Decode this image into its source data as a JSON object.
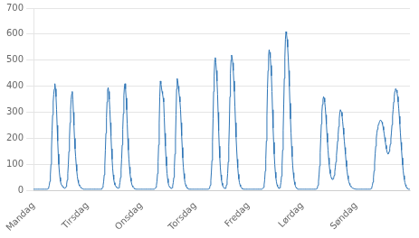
{
  "chart_data": {
    "type": "line",
    "categories": [
      "Mandag",
      null,
      null,
      null,
      null,
      null,
      null,
      null,
      null,
      null,
      null,
      null,
      null,
      null,
      null,
      null,
      null,
      null,
      null,
      null,
      null,
      null,
      null,
      null,
      null,
      null,
      null,
      null,
      null,
      null,
      null,
      null,
      null,
      null,
      null,
      null,
      null,
      null,
      null,
      null,
      null,
      null,
      null,
      null,
      null,
      null,
      null,
      null,
      null,
      null,
      null,
      null,
      null,
      null,
      null,
      null,
      null,
      null,
      null,
      null,
      null,
      null,
      null,
      null,
      null,
      null,
      null,
      null,
      null,
      null,
      null,
      null,
      null,
      null,
      null,
      null,
      null,
      null,
      null,
      null,
      null,
      null,
      null,
      null,
      null,
      null,
      null,
      null,
      null,
      null,
      null,
      null,
      null,
      null,
      null,
      null,
      "Tirsdag",
      null,
      null,
      null,
      null,
      null,
      null,
      null,
      null,
      null,
      null,
      null,
      null,
      null,
      null,
      null,
      null,
      null,
      null,
      null,
      null,
      null,
      null,
      null,
      null,
      null,
      null,
      null,
      null,
      null,
      null,
      null,
      null,
      null,
      null,
      null,
      null,
      null,
      null,
      null,
      null,
      null,
      null,
      null,
      null,
      null,
      null,
      null,
      null,
      null,
      null,
      null,
      null,
      null,
      null,
      null,
      null,
      null,
      null,
      null,
      null,
      null,
      null,
      null,
      null,
      null,
      null,
      null,
      null,
      null,
      null,
      null,
      null,
      null,
      null,
      null,
      null,
      null,
      null,
      null,
      null,
      null,
      null,
      null,
      null,
      null,
      null,
      null,
      null,
      null,
      null,
      null,
      null,
      null,
      null,
      null,
      "Onsdag",
      null,
      null,
      null,
      null,
      null,
      null,
      null,
      null,
      null,
      null,
      null,
      null,
      null,
      null,
      null,
      null,
      null,
      null,
      null,
      null,
      null,
      null,
      null,
      null,
      null,
      null,
      null,
      null,
      null,
      null,
      null,
      null,
      null,
      null,
      null,
      null,
      null,
      null,
      null,
      null,
      null,
      null,
      null,
      null,
      null,
      null,
      null,
      null,
      null,
      null,
      null,
      null,
      null,
      null,
      null,
      null,
      null,
      null,
      null,
      null,
      null,
      null,
      null,
      null,
      null,
      null,
      null,
      null,
      null,
      null,
      null,
      null,
      null,
      null,
      null,
      null,
      null,
      null,
      null,
      null,
      null,
      null,
      null,
      null,
      null,
      null,
      null,
      null,
      null,
      null,
      null,
      null,
      null,
      null,
      null,
      "Torsdag",
      null,
      null,
      null,
      null,
      null,
      null,
      null,
      null,
      null,
      null,
      null,
      null,
      null,
      null,
      null,
      null,
      null,
      null,
      null,
      null,
      null,
      null,
      null,
      null,
      null,
      null,
      null,
      null,
      null,
      null,
      null,
      null,
      null,
      null,
      null,
      null,
      null,
      null,
      null,
      null,
      null,
      null,
      null,
      null,
      null,
      null,
      null,
      null,
      null,
      null,
      null,
      null,
      null,
      null,
      null,
      null,
      null,
      null,
      null,
      null,
      null,
      null,
      null,
      null,
      null,
      null,
      null,
      null,
      null,
      null,
      null,
      null,
      null,
      null,
      null,
      null,
      null,
      null,
      null,
      null,
      null,
      null,
      null,
      null,
      null,
      null,
      null,
      null,
      null,
      null,
      null,
      null,
      null,
      null,
      "Fredag",
      null,
      null,
      null,
      null,
      null,
      null,
      null,
      null,
      null,
      null,
      null,
      null,
      null,
      null,
      null,
      null,
      null,
      null,
      null,
      null,
      null,
      null,
      null,
      null,
      null,
      null,
      null,
      null,
      null,
      null,
      null,
      null,
      null,
      null,
      null,
      null,
      null,
      null,
      null,
      null,
      null,
      null,
      null,
      null,
      null,
      null,
      null,
      null,
      null,
      null,
      null,
      null,
      null,
      null,
      null,
      null,
      null,
      null,
      null,
      null,
      null,
      null,
      null,
      null,
      null,
      null,
      null,
      null,
      null,
      null,
      null,
      null,
      null,
      null,
      null,
      null,
      null,
      null,
      null,
      null,
      null,
      null,
      null,
      null,
      null,
      null,
      null,
      null,
      null,
      null,
      null,
      null,
      null,
      null,
      null,
      "Lørdag",
      null,
      null,
      null,
      null,
      null,
      null,
      null,
      null,
      null,
      null,
      null,
      null,
      null,
      null,
      null,
      null,
      null,
      null,
      null,
      null,
      null,
      null,
      null,
      null,
      null,
      null,
      null,
      null,
      null,
      null,
      null,
      null,
      null,
      null,
      null,
      null,
      null,
      null,
      null,
      null,
      null,
      null,
      null,
      null,
      null,
      null,
      null,
      null,
      null,
      null,
      null,
      null,
      null,
      null,
      null,
      null,
      null,
      null,
      null,
      null,
      null,
      null,
      null,
      null,
      null,
      null,
      null,
      null,
      null,
      null,
      null,
      null,
      null,
      null,
      null,
      null,
      null,
      null,
      null,
      null,
      null,
      null,
      null,
      null,
      null,
      null,
      null,
      null,
      null,
      null,
      null,
      null,
      null,
      null,
      null,
      "Søndag",
      null,
      null,
      null,
      null,
      null,
      null,
      null,
      null,
      null,
      null,
      null,
      null,
      null,
      null,
      null,
      null,
      null,
      null,
      null,
      null,
      null,
      null,
      null,
      null,
      null,
      null,
      null,
      null,
      null,
      null,
      null,
      null,
      null,
      null,
      null,
      null,
      null,
      null,
      null,
      null,
      null,
      null,
      null,
      null,
      null,
      null,
      null,
      null,
      null,
      null,
      null,
      null,
      null,
      null,
      null,
      null,
      null,
      null,
      null,
      null,
      null,
      null,
      null,
      null,
      null,
      null,
      null,
      null,
      null,
      null,
      null,
      null,
      null,
      null,
      null,
      null,
      null,
      null,
      null,
      null,
      null,
      null,
      null,
      null,
      null,
      null,
      null,
      null,
      null,
      null,
      null,
      null,
      null,
      null,
      null,
      null
    ],
    "values": [
      5,
      5,
      5,
      5,
      5,
      5,
      5,
      5,
      5,
      5,
      5,
      5,
      5,
      5,
      5,
      5,
      5,
      5,
      5,
      5,
      5,
      5,
      5,
      5,
      5,
      5,
      8,
      12,
      20,
      35,
      60,
      100,
      160,
      230,
      290,
      340,
      370,
      390,
      410,
      390,
      360,
      310,
      250,
      190,
      140,
      100,
      70,
      50,
      35,
      25,
      20,
      18,
      15,
      12,
      10,
      8,
      8,
      10,
      15,
      25,
      40,
      65,
      100,
      150,
      200,
      260,
      310,
      350,
      370,
      380,
      350,
      300,
      250,
      200,
      160,
      130,
      100,
      75,
      55,
      40,
      30,
      22,
      18,
      15,
      12,
      10,
      8,
      7,
      6,
      5,
      5,
      5,
      5,
      5,
      5,
      5,
      5,
      5,
      5,
      5,
      5,
      5,
      5,
      5,
      5,
      5,
      5,
      5,
      5,
      5,
      5,
      5,
      5,
      5,
      5,
      5,
      5,
      5,
      5,
      5,
      5,
      5,
      8,
      12,
      20,
      35,
      60,
      95,
      155,
      220,
      280,
      340,
      385,
      395,
      380,
      350,
      310,
      260,
      210,
      160,
      120,
      85,
      60,
      42,
      30,
      22,
      18,
      15,
      12,
      10,
      8,
      8,
      10,
      18,
      30,
      50,
      80,
      120,
      175,
      235,
      295,
      365,
      400,
      410,
      390,
      355,
      310,
      255,
      200,
      155,
      120,
      90,
      65,
      48,
      35,
      25,
      18,
      14,
      11,
      9,
      7,
      6,
      5,
      5,
      5,
      5,
      5,
      5,
      5,
      5,
      5,
      5,
      5,
      5,
      5,
      5,
      5,
      5,
      5,
      5,
      5,
      5,
      5,
      5,
      5,
      5,
      5,
      5,
      5,
      5,
      5,
      5,
      5,
      5,
      5,
      5,
      5,
      8,
      12,
      20,
      35,
      65,
      110,
      175,
      260,
      360,
      420,
      410,
      395,
      380,
      370,
      355,
      340,
      280,
      220,
      170,
      130,
      95,
      65,
      45,
      30,
      20,
      15,
      12,
      10,
      8,
      8,
      10,
      18,
      30,
      50,
      90,
      140,
      200,
      290,
      390,
      430,
      420,
      400,
      380,
      360,
      340,
      310,
      260,
      210,
      165,
      125,
      90,
      65,
      45,
      30,
      22,
      16,
      12,
      9,
      7,
      6,
      5,
      5,
      5,
      5,
      5,
      5,
      5,
      5,
      5,
      5,
      5,
      5,
      5,
      5,
      5,
      5,
      5,
      5,
      5,
      5,
      5,
      5,
      5,
      5,
      5,
      5,
      5,
      5,
      5,
      5,
      5,
      5,
      5,
      5,
      5,
      5,
      8,
      12,
      20,
      38,
      70,
      115,
      185,
      275,
      380,
      440,
      500,
      510,
      490,
      460,
      420,
      370,
      300,
      230,
      170,
      125,
      88,
      60,
      40,
      28,
      20,
      14,
      11,
      9,
      8,
      8,
      12,
      22,
      38,
      65,
      110,
      170,
      250,
      360,
      450,
      500,
      520,
      510,
      490,
      460,
      420,
      380,
      320,
      260,
      205,
      160,
      120,
      88,
      62,
      44,
      30,
      22,
      16,
      12,
      9,
      7,
      6,
      5,
      5,
      5,
      5,
      5,
      5,
      5,
      5,
      5,
      5,
      5,
      5,
      5,
      5,
      5,
      5,
      5,
      5,
      5,
      5,
      5,
      5,
      5,
      5,
      5,
      5,
      5,
      5,
      5,
      5,
      5,
      5,
      5,
      5,
      5,
      8,
      12,
      22,
      40,
      75,
      120,
      190,
      285,
      390,
      460,
      520,
      540,
      530,
      510,
      480,
      440,
      380,
      310,
      240,
      185,
      140,
      100,
      70,
      48,
      33,
      22,
      16,
      12,
      9,
      8,
      10,
      18,
      30,
      55,
      95,
      155,
      230,
      330,
      430,
      510,
      580,
      610,
      600,
      580,
      550,
      510,
      460,
      400,
      335,
      275,
      220,
      170,
      130,
      95,
      68,
      48,
      33,
      23,
      16,
      11,
      8,
      6,
      5,
      5,
      5,
      5,
      5,
      5,
      5,
      5,
      5,
      5,
      5,
      5,
      5,
      5,
      5,
      5,
      5,
      5,
      5,
      5,
      5,
      5,
      5,
      5,
      5,
      5,
      5,
      5,
      5,
      5,
      5,
      5,
      5,
      5,
      8,
      12,
      20,
      35,
      60,
      95,
      145,
      200,
      255,
      300,
      330,
      350,
      360,
      355,
      340,
      320,
      290,
      255,
      220,
      185,
      155,
      125,
      100,
      80,
      65,
      55,
      48,
      44,
      42,
      44,
      48,
      58,
      72,
      90,
      110,
      135,
      160,
      190,
      215,
      245,
      275,
      300,
      310,
      310,
      300,
      285,
      265,
      240,
      215,
      190,
      165,
      140,
      115,
      92,
      73,
      57,
      44,
      34,
      27,
      21,
      17,
      14,
      12,
      10,
      9,
      8,
      7,
      6,
      6,
      5,
      5,
      5,
      5,
      5,
      5,
      5,
      5,
      5,
      5,
      5,
      5,
      5,
      5,
      5,
      5,
      5,
      5,
      5,
      5,
      5,
      5,
      5,
      5,
      5,
      5,
      5,
      5,
      8,
      12,
      20,
      32,
      50,
      75,
      105,
      140,
      170,
      200,
      220,
      235,
      245,
      255,
      260,
      265,
      270,
      270,
      268,
      262,
      255,
      245,
      232,
      218,
      203,
      188,
      173,
      160,
      150,
      143,
      140,
      142,
      150,
      162,
      178,
      198,
      222,
      252,
      285,
      310,
      340,
      360,
      380,
      390,
      390,
      385,
      375,
      360,
      340,
      315,
      285,
      255,
      220,
      185,
      155,
      125,
      98,
      75,
      57,
      42,
      31,
      22,
      16,
      11,
      8,
      6,
      5,
      5,
      5,
      5
    ],
    "color": "#2E75B6",
    "ylim": [
      0,
      700
    ],
    "yticks": [
      0,
      100,
      200,
      300,
      400,
      500,
      600,
      700
    ],
    "grid": "y"
  }
}
